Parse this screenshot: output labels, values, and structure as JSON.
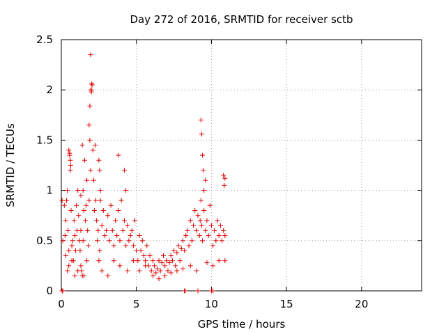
{
  "chart_data": {
    "type": "scatter",
    "title": "Day 272 of 2016, SRMTID for receiver sctb",
    "xlabel": "GPS time / hours",
    "ylabel": "SRMTID / TECUs",
    "xlim": [
      0,
      24
    ],
    "ylim": [
      0,
      2.5
    ],
    "xticks": [
      0,
      5,
      10,
      15,
      20
    ],
    "xtick_labels": [
      "0",
      "5",
      "10",
      "15",
      "20"
    ],
    "yticks": [
      0,
      0.5,
      1,
      1.5,
      2,
      2.5
    ],
    "ytick_labels": [
      "0",
      "0.5",
      "1",
      "1.5",
      "2",
      "2.5"
    ],
    "grid": true,
    "marker": "+",
    "series": [
      {
        "name": "sctb",
        "color": "#e00000",
        "x": [
          0.05,
          0.1,
          0.2,
          0.25,
          0.3,
          0.35,
          0.4,
          0.45,
          0.5,
          0.55,
          0.6,
          0.65,
          0.7,
          0.75,
          0.8,
          0.85,
          0.9,
          0.95,
          1.0,
          1.05,
          1.1,
          1.15,
          1.2,
          1.25,
          1.3,
          1.35,
          1.4,
          1.45,
          1.5,
          1.55,
          1.6,
          1.65,
          1.7,
          1.75,
          1.8,
          1.85,
          1.9,
          1.95,
          2.0,
          2.05,
          2.1,
          2.15,
          2.2,
          2.25,
          2.3,
          2.35,
          2.4,
          2.45,
          2.5,
          2.55,
          2.6,
          2.7,
          2.8,
          2.9,
          3.0,
          3.1,
          3.2,
          3.3,
          3.4,
          3.5,
          3.6,
          3.7,
          3.8,
          3.9,
          4.0,
          4.1,
          4.2,
          4.3,
          4.4,
          4.5,
          4.6,
          4.7,
          4.8,
          4.9,
          5.0,
          5.1,
          5.2,
          5.3,
          5.4,
          5.5,
          5.6,
          5.7,
          5.8,
          5.9,
          6.0,
          6.1,
          6.2,
          6.3,
          6.4,
          6.5,
          6.6,
          6.7,
          6.8,
          6.9,
          7.0,
          7.1,
          7.2,
          7.3,
          7.4,
          7.5,
          7.6,
          7.7,
          7.8,
          7.9,
          8.0,
          8.1,
          8.2,
          8.3,
          8.4,
          8.5,
          8.6,
          8.7,
          8.8,
          8.9,
          9.0,
          9.1,
          9.2,
          9.25,
          9.3,
          9.35,
          9.4,
          9.5,
          9.6,
          9.7,
          9.8,
          9.9,
          10.0,
          10.1,
          10.2,
          10.3,
          10.4,
          10.5,
          10.6,
          10.7,
          10.8,
          10.9,
          1.95,
          1.97,
          2.0,
          2.02,
          1.9,
          1.85,
          0.5,
          0.55,
          0.6,
          0.62,
          1.4,
          1.45,
          1.3,
          2.5,
          2.55,
          2.6,
          3.8,
          4.2,
          4.3,
          9.3,
          9.35,
          9.4,
          9.45,
          9.5,
          9.6,
          10.8,
          10.85,
          10.9,
          0.3,
          0.4,
          0.5,
          0.7,
          0.9,
          1.1,
          1.3,
          1.5,
          1.7,
          2.7,
          3.1,
          3.5,
          3.9,
          4.4,
          4.8,
          5.2,
          5.6,
          6.1,
          6.5,
          6.9,
          7.3,
          7.7,
          8.1,
          8.6,
          9.0,
          9.7,
          10.1,
          10.5,
          10.9,
          0.05,
          0.1,
          8.2,
          8.25,
          9.1,
          10.0,
          10.1
        ],
        "y": [
          0.9,
          0.5,
          0.85,
          0.55,
          0.7,
          0.9,
          1.0,
          0.6,
          0.4,
          1.35,
          1.2,
          0.8,
          0.45,
          0.5,
          0.3,
          0.7,
          0.55,
          0.4,
          0.85,
          0.6,
          1.0,
          0.75,
          0.5,
          0.4,
          0.6,
          0.2,
          0.15,
          0.5,
          0.8,
          1.3,
          0.7,
          0.85,
          1.1,
          0.6,
          0.45,
          0.9,
          1.5,
          1.2,
          2.0,
          2.05,
          1.4,
          1.1,
          0.8,
          1.45,
          0.9,
          0.7,
          0.5,
          0.6,
          0.3,
          0.4,
          0.9,
          0.65,
          0.8,
          0.55,
          0.6,
          0.75,
          0.5,
          0.85,
          0.6,
          0.45,
          0.7,
          0.55,
          0.8,
          0.5,
          0.9,
          0.6,
          0.7,
          0.45,
          0.65,
          0.5,
          0.55,
          0.6,
          0.45,
          0.7,
          0.4,
          0.3,
          0.55,
          0.4,
          0.5,
          0.35,
          0.3,
          0.45,
          0.25,
          0.35,
          0.2,
          0.3,
          0.25,
          0.18,
          0.22,
          0.3,
          0.2,
          0.28,
          0.35,
          0.25,
          0.3,
          0.2,
          0.28,
          0.35,
          0.3,
          0.4,
          0.25,
          0.38,
          0.45,
          0.3,
          0.42,
          0.5,
          0.4,
          0.55,
          0.6,
          0.45,
          0.7,
          0.5,
          0.65,
          0.8,
          0.6,
          0.75,
          0.55,
          0.7,
          0.9,
          0.65,
          0.5,
          0.8,
          0.6,
          0.7,
          0.55,
          0.85,
          0.65,
          0.45,
          0.6,
          0.5,
          0.7,
          0.55,
          0.65,
          0.5,
          0.6,
          0.55,
          2.35,
          2.0,
          1.98,
          2.06,
          1.84,
          1.65,
          1.4,
          1.37,
          1.3,
          1.25,
          1.45,
          1.0,
          0.95,
          1.3,
          1.2,
          1.0,
          1.35,
          1.2,
          1.0,
          1.7,
          1.56,
          1.35,
          1.2,
          1.0,
          1.1,
          1.15,
          1.05,
          1.12,
          0.35,
          0.2,
          0.25,
          0.3,
          0.15,
          0.2,
          0.25,
          0.15,
          0.3,
          0.2,
          0.15,
          0.3,
          0.25,
          0.2,
          0.3,
          0.2,
          0.25,
          0.15,
          0.12,
          0.15,
          0.18,
          0.2,
          0.22,
          0.25,
          0.2,
          0.28,
          0.25,
          0.3,
          0.3,
          0.0,
          0.0,
          0.0,
          0.0,
          0.0,
          0.0,
          0.0
        ]
      }
    ]
  }
}
